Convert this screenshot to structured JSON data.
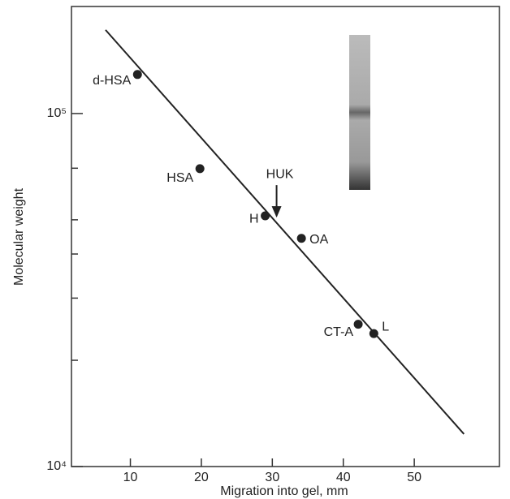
{
  "chart_data": {
    "type": "scatter",
    "xlabel": "Migration into gel, mm",
    "ylabel": "Molecular weight",
    "xlim": [
      1.7,
      62
    ],
    "xticks": [
      10,
      20,
      30,
      40,
      50
    ],
    "ylim": [
      10000,
      201000
    ],
    "log_y": true,
    "yticks": [
      {
        "value": 10000,
        "label": "10⁴"
      },
      {
        "value": 100000,
        "label": "10⁵"
      }
    ],
    "yminorticks": [
      20000,
      30000,
      40000,
      50000,
      70000
    ],
    "color": "#222222",
    "points": {
      "labels": [
        "d-HSA",
        "HSA",
        "H",
        "OA",
        "CT-A",
        "L"
      ],
      "x": [
        11.0,
        19.8,
        29.0,
        34.1,
        42.1,
        44.3
      ],
      "y": [
        129000,
        69800,
        51300,
        44300,
        25300,
        23800
      ]
    },
    "fit_line": {
      "x": [
        6.5,
        57.0
      ],
      "y": [
        172500,
        12360
      ]
    },
    "annotation": {
      "text": "HUK",
      "x": 30.6,
      "y": 50200
    }
  }
}
